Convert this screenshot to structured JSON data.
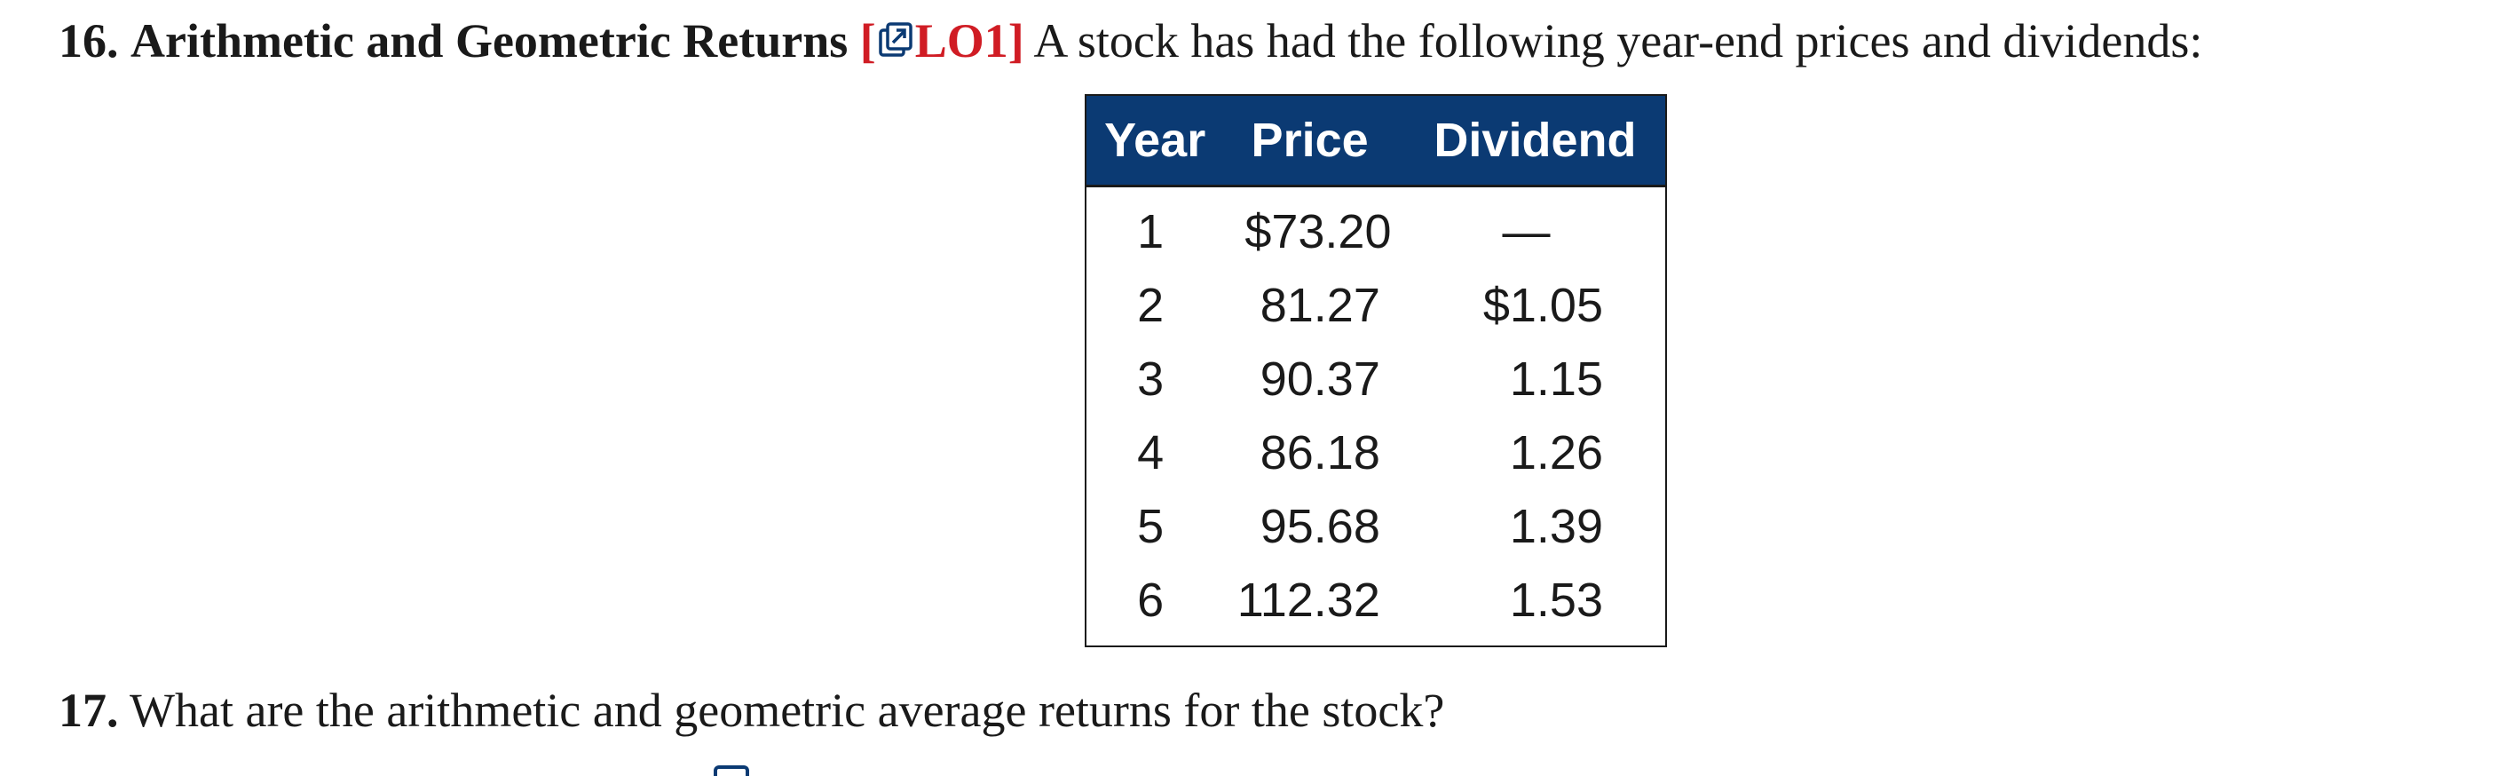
{
  "problem": {
    "number": "16.",
    "title": "Arithmetic and Geometric Returns",
    "lo_open": "[",
    "lo_label": "LO1]",
    "text": "A stock has had the following year-end prices and dividends:",
    "link_icon": "external-link-icon"
  },
  "table": {
    "headers": [
      "Year",
      "Price",
      "Dividend"
    ],
    "rows": [
      [
        "1",
        "$73.20",
        "—"
      ],
      [
        "2",
        "81.27",
        "$1.05"
      ],
      [
        "3",
        "90.37",
        "1.15"
      ],
      [
        "4",
        "86.18",
        "1.26"
      ],
      [
        "5",
        "95.68",
        "1.39"
      ],
      [
        "6",
        "112.32",
        "1.53"
      ]
    ],
    "header_bg": "#0b3a73"
  },
  "question": {
    "number": "17.",
    "text": "What are the arithmetic and geometric average returns for the stock?"
  },
  "colors": {
    "lo_reference": "#d01c24",
    "header_background": "#0b3a73"
  }
}
